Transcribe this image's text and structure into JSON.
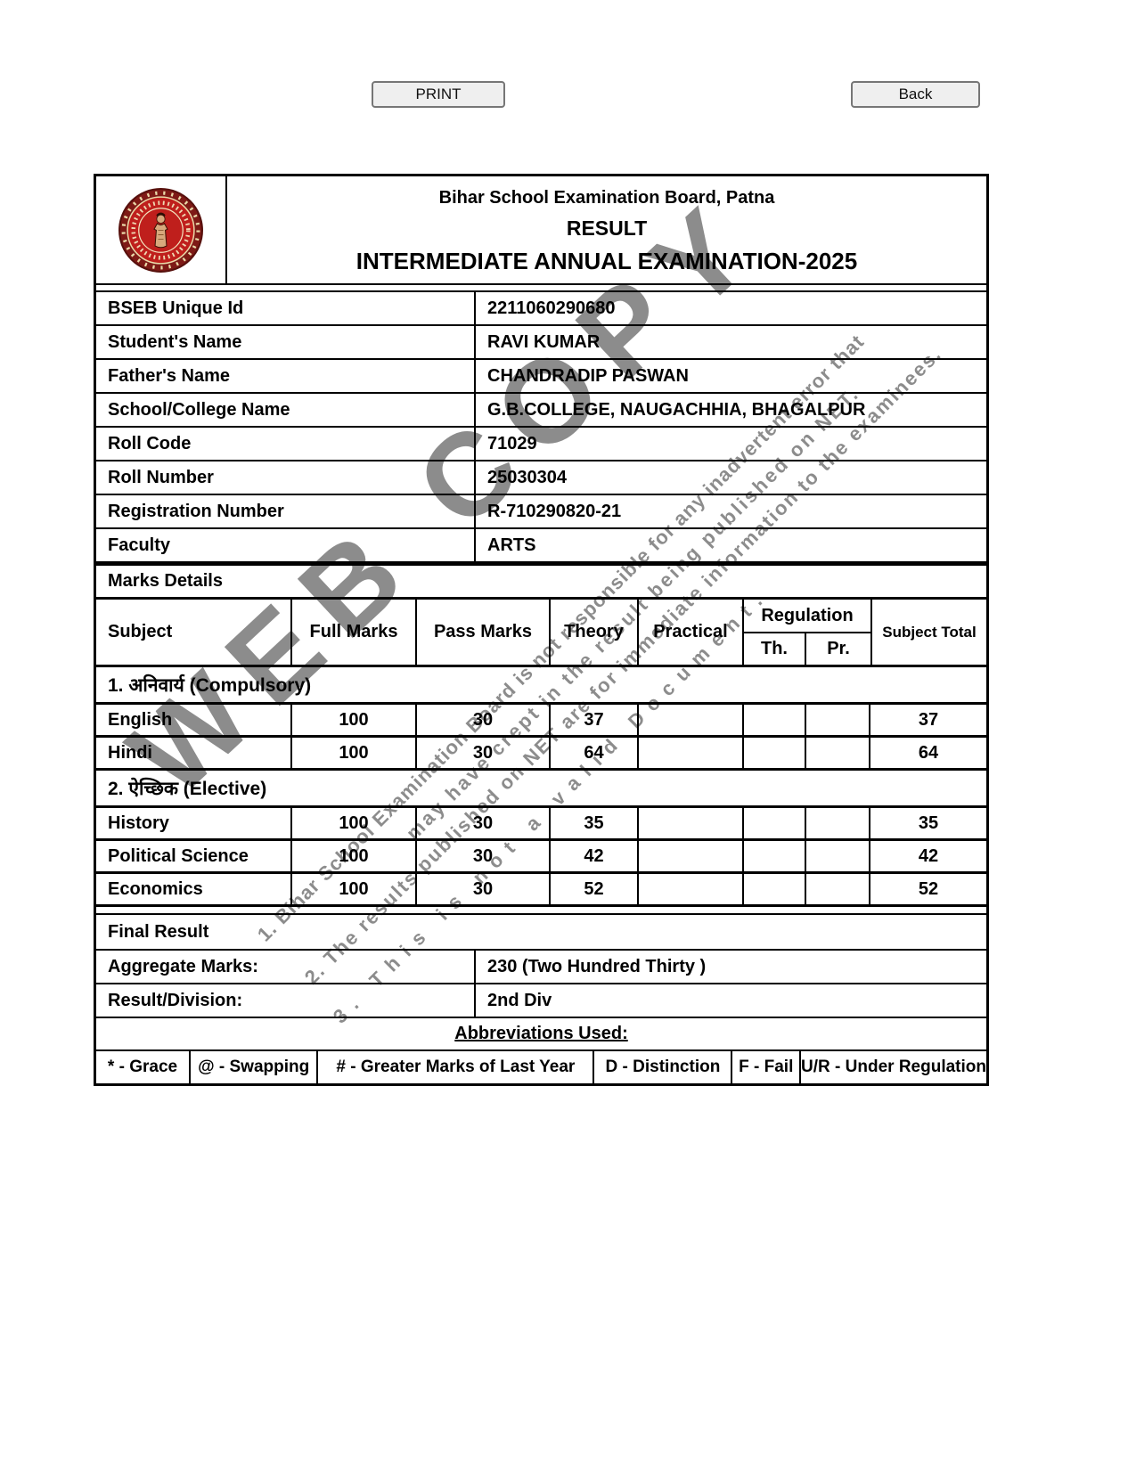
{
  "toolbar": {
    "print_label": "PRINT",
    "back_label": "Back"
  },
  "header": {
    "board": "Bihar School Examination Board, Patna",
    "result": "RESULT",
    "exam": "INTERMEDIATE ANNUAL EXAMINATION-2025",
    "logo": "bseb-seal-icon"
  },
  "info": {
    "rows": [
      {
        "label": "BSEB Unique Id",
        "value": "2211060290680"
      },
      {
        "label": "Student's Name",
        "value": "RAVI KUMAR"
      },
      {
        "label": "Father's Name",
        "value": "CHANDRADIP PASWAN"
      },
      {
        "label": "School/College Name",
        "value": "G.B.COLLEGE, NAUGACHHIA, BHAGALPUR"
      },
      {
        "label": "Roll Code",
        "value": "71029"
      },
      {
        "label": "Roll Number",
        "value": "25030304"
      },
      {
        "label": "Registration Number",
        "value": "R-710290820-21"
      },
      {
        "label": "Faculty",
        "value": "ARTS"
      }
    ]
  },
  "marks": {
    "section_title": "Marks Details",
    "columns": [
      "Subject",
      "Full Marks",
      "Pass Marks",
      "Theory",
      "Practical",
      "Regulation",
      "Th.",
      "Pr.",
      "Subject Total"
    ],
    "groups": [
      {
        "title": "1. अनिवार्य (Compulsory)",
        "rows": [
          {
            "subject": "English",
            "full": "100",
            "pass": "30",
            "theory": "37",
            "practical": "",
            "reg_th": "",
            "reg_pr": "",
            "total": "37"
          },
          {
            "subject": "Hindi",
            "full": "100",
            "pass": "30",
            "theory": "64",
            "practical": "",
            "reg_th": "",
            "reg_pr": "",
            "total": "64"
          }
        ]
      },
      {
        "title": "2. ऐच्छिक (Elective)",
        "rows": [
          {
            "subject": "History",
            "full": "100",
            "pass": "30",
            "theory": "35",
            "practical": "",
            "reg_th": "",
            "reg_pr": "",
            "total": "35"
          },
          {
            "subject": "Political Science",
            "full": "100",
            "pass": "30",
            "theory": "42",
            "practical": "",
            "reg_th": "",
            "reg_pr": "",
            "total": "42"
          },
          {
            "subject": "Economics",
            "full": "100",
            "pass": "30",
            "theory": "52",
            "practical": "",
            "reg_th": "",
            "reg_pr": "",
            "total": "52"
          }
        ]
      }
    ]
  },
  "result": {
    "final_result_label": "Final Result",
    "rows": [
      {
        "label": "Aggregate Marks:",
        "value": "230 (Two Hundred Thirty )"
      },
      {
        "label": "Result/Division:",
        "value": "2nd Div"
      }
    ]
  },
  "abbreviations": {
    "title": "Abbreviations Used:",
    "items": [
      "* - Grace",
      "@ - Swapping",
      "# - Greater Marks of Last Year",
      "D - Distinction",
      "F - Fail",
      "U/R - Under Regulation"
    ]
  },
  "watermark": {
    "big": "WEB COPY",
    "lines": [
      "1. Bihar School Examination Board is not responsible for any inadvertent error that",
      "may have crept in the result being published on NET.",
      "2. The results published on NET are for immediate information to the examinees.",
      "3. This is not a valid Document."
    ]
  },
  "colors": {
    "watermark_gray": "#8c8c8c",
    "seal_red": "#bf1f1c",
    "seal_dark_red": "#7e1a16",
    "button_bg": "#efefef",
    "border_black": "#000000"
  }
}
